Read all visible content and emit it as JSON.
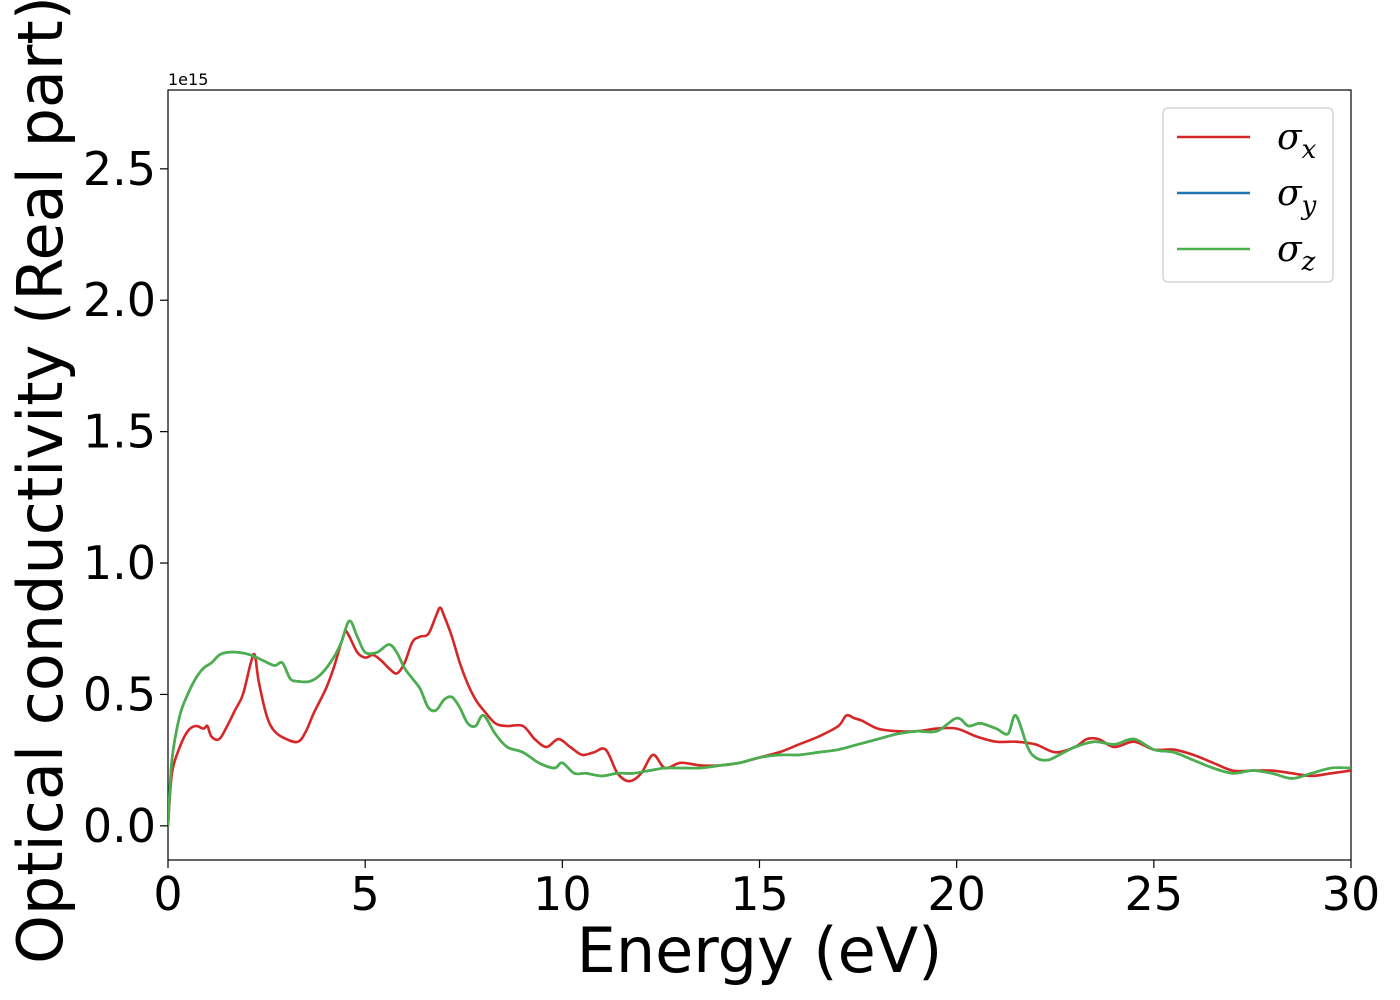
{
  "chart_data": {
    "type": "line",
    "xlabel": "Energy (eV)",
    "ylabel": "Optical conductivity (Real part)",
    "y_offset_label": "1e15",
    "y_scale": 1000000000000000.0,
    "xlim": [
      0,
      30
    ],
    "ylim": [
      -0.13,
      2.8
    ],
    "x_ticks": [
      0,
      5,
      10,
      15,
      20,
      25,
      30
    ],
    "x_tick_labels": [
      "0",
      "5",
      "10",
      "15",
      "20",
      "25",
      "30"
    ],
    "y_ticks": [
      0.0,
      0.5,
      1.0,
      1.5,
      2.0,
      2.5
    ],
    "y_tick_labels": [
      "0.0",
      "0.5",
      "1.0",
      "1.5",
      "2.0",
      "2.5"
    ],
    "grid": false,
    "legend_position": "top-right",
    "series": [
      {
        "name": "σx",
        "legend_base": "σ",
        "legend_sub": "x",
        "color": "#d62728",
        "x": [
          0,
          0.1,
          0.3,
          0.5,
          0.7,
          0.9,
          1.0,
          1.1,
          1.3,
          1.5,
          1.7,
          1.9,
          2.1,
          2.2,
          2.3,
          2.5,
          2.7,
          3.0,
          3.3,
          3.5,
          3.7,
          4.0,
          4.2,
          4.4,
          4.5,
          4.6,
          4.8,
          5.0,
          5.2,
          5.4,
          5.6,
          5.8,
          6.0,
          6.2,
          6.4,
          6.6,
          6.8,
          6.9,
          7.0,
          7.2,
          7.4,
          7.6,
          7.8,
          8.0,
          8.3,
          8.6,
          9.0,
          9.3,
          9.6,
          9.9,
          10.2,
          10.5,
          10.8,
          11.1,
          11.4,
          11.7,
          12.0,
          12.3,
          12.6,
          13.0,
          13.5,
          14.0,
          14.5,
          15.0,
          15.5,
          16.0,
          16.5,
          17.0,
          17.2,
          17.4,
          17.6,
          18.0,
          18.5,
          19.0,
          19.5,
          20.0,
          20.5,
          21.0,
          21.5,
          22.0,
          22.5,
          23.0,
          23.3,
          23.6,
          24.0,
          24.5,
          25.0,
          25.5,
          26.0,
          26.5,
          27.0,
          27.5,
          28.0,
          28.5,
          29.0,
          29.5,
          30.0
        ],
        "values": [
          0.0,
          0.2,
          0.3,
          0.36,
          0.38,
          0.37,
          0.38,
          0.34,
          0.33,
          0.38,
          0.44,
          0.5,
          0.62,
          0.65,
          0.55,
          0.42,
          0.36,
          0.33,
          0.32,
          0.36,
          0.43,
          0.52,
          0.6,
          0.7,
          0.74,
          0.72,
          0.66,
          0.64,
          0.65,
          0.63,
          0.6,
          0.58,
          0.62,
          0.7,
          0.72,
          0.73,
          0.8,
          0.83,
          0.8,
          0.72,
          0.62,
          0.54,
          0.48,
          0.44,
          0.39,
          0.38,
          0.38,
          0.33,
          0.3,
          0.33,
          0.3,
          0.27,
          0.28,
          0.29,
          0.2,
          0.17,
          0.2,
          0.27,
          0.22,
          0.24,
          0.23,
          0.23,
          0.24,
          0.26,
          0.28,
          0.31,
          0.34,
          0.38,
          0.42,
          0.41,
          0.4,
          0.37,
          0.36,
          0.36,
          0.37,
          0.37,
          0.34,
          0.32,
          0.32,
          0.31,
          0.28,
          0.3,
          0.33,
          0.33,
          0.3,
          0.32,
          0.29,
          0.29,
          0.27,
          0.24,
          0.21,
          0.21,
          0.21,
          0.2,
          0.19,
          0.2,
          0.21
        ]
      },
      {
        "name": "σy",
        "legend_base": "σ",
        "legend_sub": "y",
        "color": "#1f77b4",
        "x": [
          0,
          0.1,
          0.3,
          0.5,
          0.7,
          0.9,
          1.1,
          1.3,
          1.5,
          1.8,
          2.1,
          2.4,
          2.7,
          2.9,
          3.1,
          3.3,
          3.6,
          3.9,
          4.2,
          4.4,
          4.6,
          4.8,
          5.0,
          5.3,
          5.6,
          5.8,
          6.0,
          6.2,
          6.4,
          6.6,
          6.8,
          7.0,
          7.2,
          7.4,
          7.6,
          7.8,
          8.0,
          8.3,
          8.6,
          9.0,
          9.4,
          9.8,
          10.0,
          10.3,
          10.6,
          11.0,
          11.4,
          11.8,
          12.2,
          12.6,
          13.0,
          13.5,
          14.0,
          14.5,
          15.0,
          15.5,
          16.0,
          16.5,
          17.0,
          17.5,
          18.0,
          18.5,
          19.0,
          19.5,
          20.0,
          20.3,
          20.6,
          21.0,
          21.3,
          21.5,
          21.8,
          22.0,
          22.3,
          22.6,
          23.0,
          23.5,
          24.0,
          24.5,
          25.0,
          25.5,
          26.0,
          26.5,
          27.0,
          27.5,
          28.0,
          28.5,
          29.0,
          29.5,
          30.0
        ],
        "values": [
          0.0,
          0.25,
          0.42,
          0.5,
          0.56,
          0.6,
          0.62,
          0.65,
          0.66,
          0.66,
          0.65,
          0.63,
          0.61,
          0.62,
          0.56,
          0.55,
          0.55,
          0.58,
          0.64,
          0.7,
          0.78,
          0.72,
          0.66,
          0.66,
          0.69,
          0.66,
          0.6,
          0.56,
          0.52,
          0.45,
          0.44,
          0.48,
          0.49,
          0.45,
          0.39,
          0.38,
          0.42,
          0.35,
          0.3,
          0.28,
          0.24,
          0.22,
          0.24,
          0.2,
          0.2,
          0.19,
          0.2,
          0.2,
          0.21,
          0.22,
          0.22,
          0.22,
          0.23,
          0.24,
          0.26,
          0.27,
          0.27,
          0.28,
          0.29,
          0.31,
          0.33,
          0.35,
          0.36,
          0.36,
          0.41,
          0.38,
          0.39,
          0.37,
          0.35,
          0.42,
          0.3,
          0.26,
          0.25,
          0.27,
          0.3,
          0.32,
          0.31,
          0.33,
          0.29,
          0.28,
          0.25,
          0.22,
          0.2,
          0.21,
          0.2,
          0.18,
          0.2,
          0.22,
          0.22
        ]
      },
      {
        "name": "σz",
        "legend_base": "σ",
        "legend_sub": "z",
        "color": "#4daf4a",
        "x": [
          0,
          0.1,
          0.3,
          0.5,
          0.7,
          0.9,
          1.1,
          1.3,
          1.5,
          1.8,
          2.1,
          2.4,
          2.7,
          2.9,
          3.1,
          3.3,
          3.6,
          3.9,
          4.2,
          4.4,
          4.6,
          4.8,
          5.0,
          5.3,
          5.6,
          5.8,
          6.0,
          6.2,
          6.4,
          6.6,
          6.8,
          7.0,
          7.2,
          7.4,
          7.6,
          7.8,
          8.0,
          8.3,
          8.6,
          9.0,
          9.4,
          9.8,
          10.0,
          10.3,
          10.6,
          11.0,
          11.4,
          11.8,
          12.2,
          12.6,
          13.0,
          13.5,
          14.0,
          14.5,
          15.0,
          15.5,
          16.0,
          16.5,
          17.0,
          17.5,
          18.0,
          18.5,
          19.0,
          19.5,
          20.0,
          20.3,
          20.6,
          21.0,
          21.3,
          21.5,
          21.8,
          22.0,
          22.3,
          22.6,
          23.0,
          23.5,
          24.0,
          24.5,
          25.0,
          25.5,
          26.0,
          26.5,
          27.0,
          27.5,
          28.0,
          28.5,
          29.0,
          29.5,
          30.0
        ],
        "values": [
          0.0,
          0.25,
          0.42,
          0.5,
          0.56,
          0.6,
          0.62,
          0.65,
          0.66,
          0.66,
          0.65,
          0.63,
          0.61,
          0.62,
          0.56,
          0.55,
          0.55,
          0.58,
          0.64,
          0.7,
          0.78,
          0.72,
          0.66,
          0.66,
          0.69,
          0.66,
          0.6,
          0.56,
          0.52,
          0.45,
          0.44,
          0.48,
          0.49,
          0.45,
          0.39,
          0.38,
          0.42,
          0.35,
          0.3,
          0.28,
          0.24,
          0.22,
          0.24,
          0.2,
          0.2,
          0.19,
          0.2,
          0.2,
          0.21,
          0.22,
          0.22,
          0.22,
          0.23,
          0.24,
          0.26,
          0.27,
          0.27,
          0.28,
          0.29,
          0.31,
          0.33,
          0.35,
          0.36,
          0.36,
          0.41,
          0.38,
          0.39,
          0.37,
          0.35,
          0.42,
          0.3,
          0.26,
          0.25,
          0.27,
          0.3,
          0.32,
          0.31,
          0.33,
          0.29,
          0.28,
          0.25,
          0.22,
          0.2,
          0.21,
          0.2,
          0.18,
          0.2,
          0.22,
          0.22
        ]
      }
    ]
  }
}
